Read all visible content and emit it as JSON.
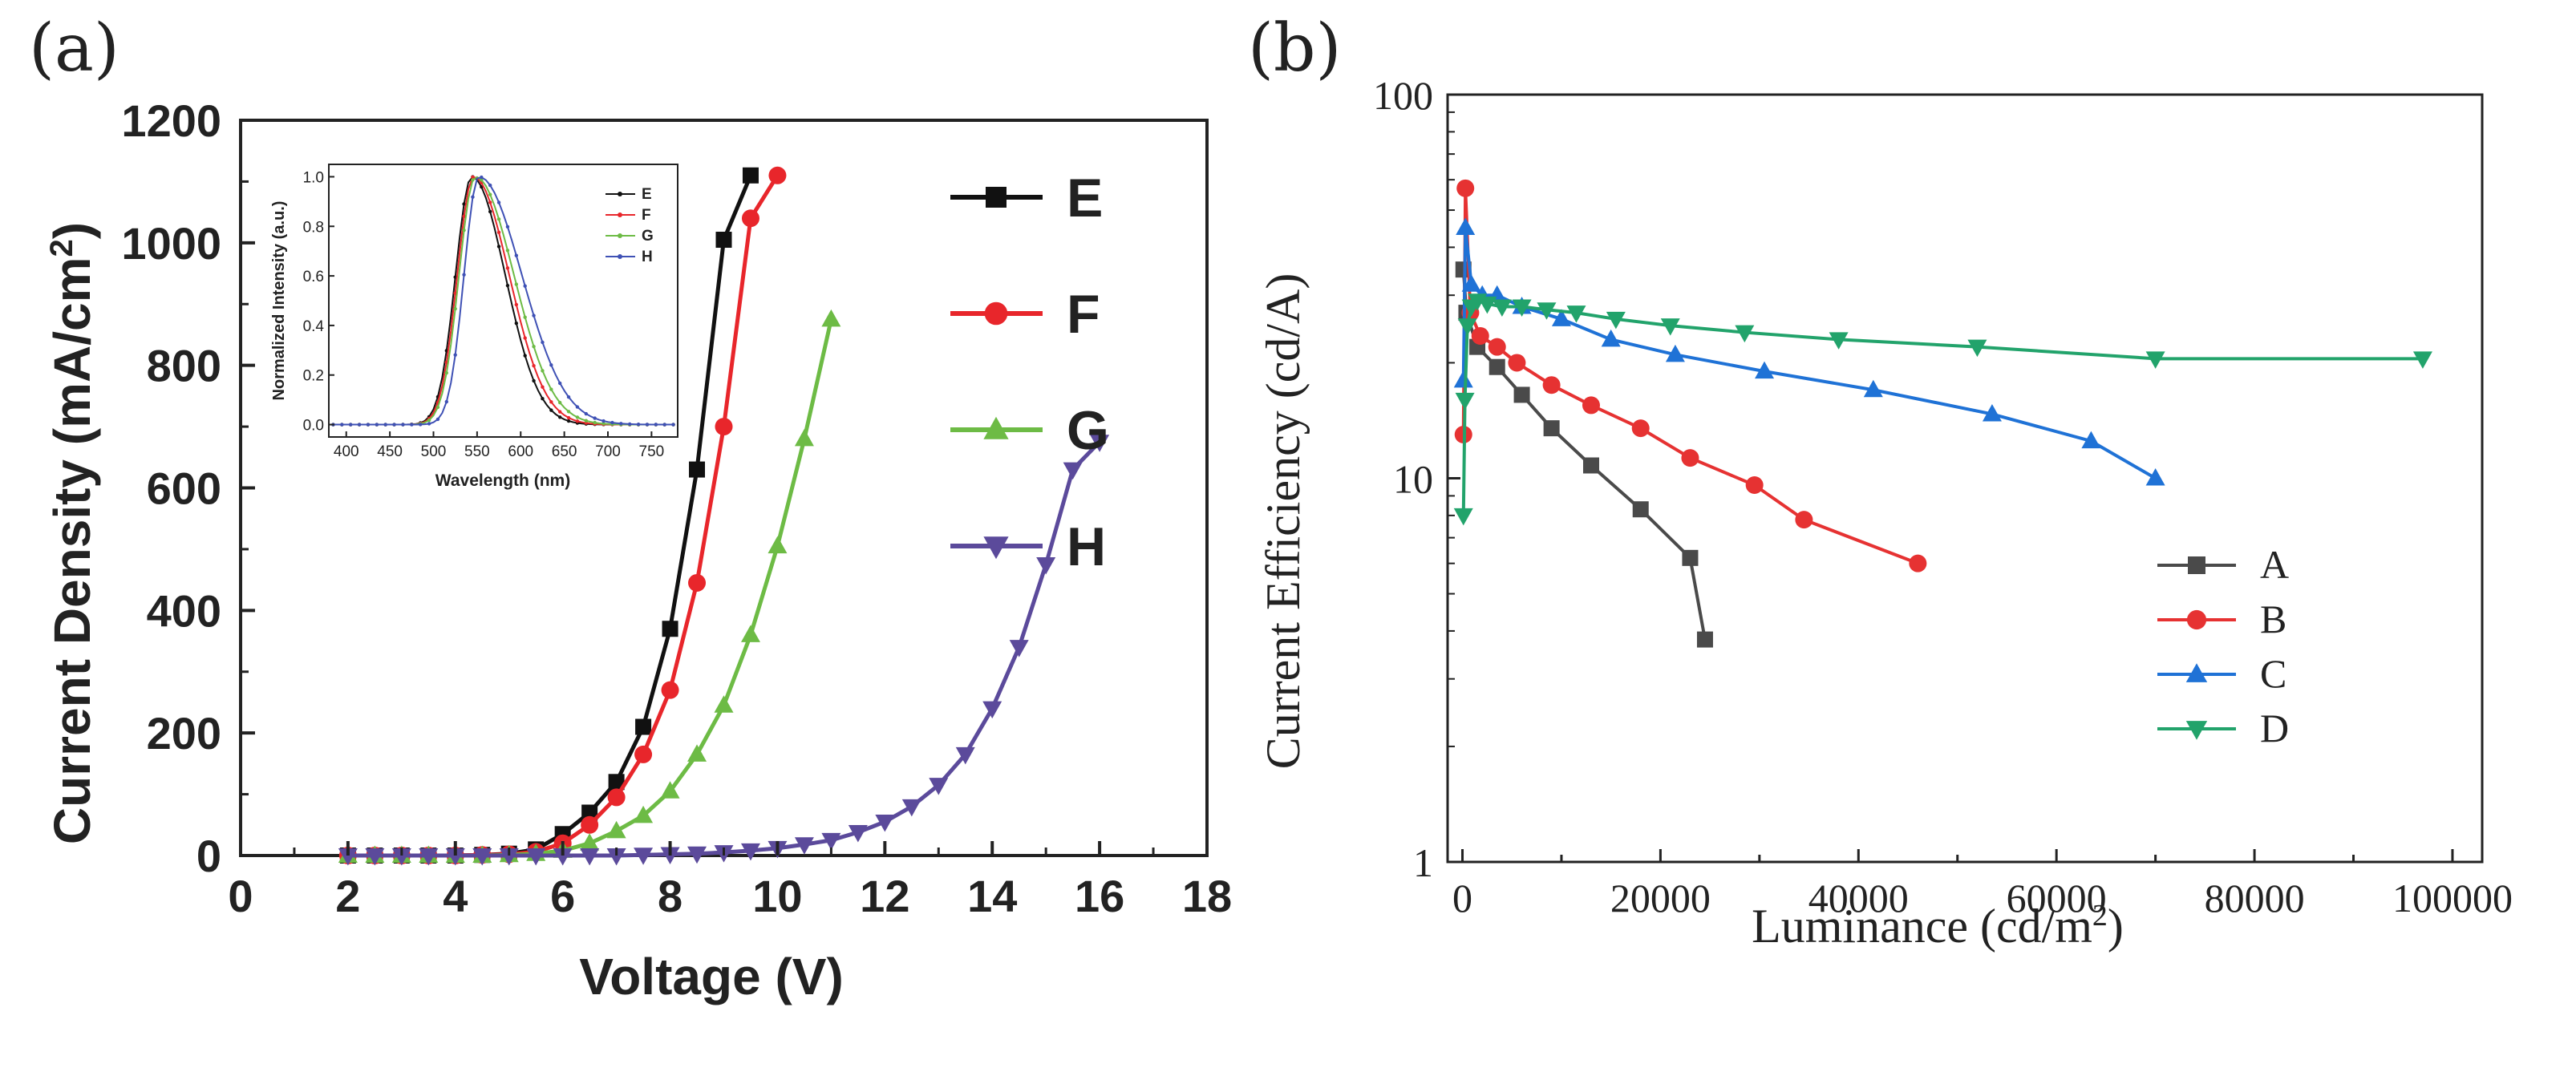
{
  "chart_data": [
    {
      "panel": "(a)",
      "type": "line",
      "title": "",
      "xlabel": "Voltage (V)",
      "ylabel": "Current Density (mA/cm2)",
      "ylabel_parts": [
        "Current Density (mA/cm",
        "2",
        ")"
      ],
      "xlim": [
        0,
        18
      ],
      "ylim": [
        0,
        1200
      ],
      "x_ticks": [
        "0",
        "2",
        "4",
        "6",
        "8",
        "10",
        "12",
        "14",
        "16",
        "18"
      ],
      "y_ticks": [
        "0",
        "200",
        "400",
        "600",
        "800",
        "1000",
        "1200"
      ],
      "legend": {
        "placement": "top-right",
        "entries": [
          "E",
          "F",
          "G",
          "H"
        ]
      },
      "series": [
        {
          "name": "E",
          "color": "#111111",
          "marker": "square",
          "x": [
            2,
            2.5,
            3,
            3.5,
            4,
            4.5,
            5,
            5.5,
            6,
            6.5,
            7,
            7.5,
            8,
            8.5,
            9,
            9.5
          ],
          "y": [
            0,
            0,
            0,
            0,
            0,
            1,
            3,
            10,
            35,
            70,
            120,
            210,
            370,
            630,
            1005,
            1110
          ]
        },
        {
          "name": "F",
          "color": "#e8262b",
          "marker": "circle",
          "x": [
            2,
            2.5,
            3,
            3.5,
            4,
            4.5,
            5,
            5.5,
            6,
            6.5,
            7,
            7.5,
            8,
            8.5,
            9,
            9.5,
            10
          ],
          "y": [
            0,
            0,
            0,
            0,
            0,
            1,
            2,
            6,
            20,
            50,
            95,
            165,
            270,
            445,
            700,
            1040,
            1110
          ]
        },
        {
          "name": "G",
          "color": "#6dbb45",
          "marker": "triangle-up",
          "x": [
            2,
            2.5,
            3,
            3.5,
            4,
            4.5,
            5,
            5.5,
            6,
            6.5,
            7,
            7.5,
            8,
            8.5,
            9,
            9.5,
            10,
            10.5,
            11
          ],
          "y": [
            0,
            0,
            0,
            0,
            0,
            0,
            1,
            3,
            8,
            20,
            40,
            65,
            105,
            165,
            245,
            360,
            505,
            680,
            875
          ]
        },
        {
          "name": "H",
          "color": "#5b4a9b",
          "marker": "triangle-down",
          "x": [
            2,
            2.5,
            3,
            3.5,
            4,
            4.5,
            5,
            5.5,
            6,
            6.5,
            7,
            7.5,
            8,
            8.5,
            9,
            9.5,
            10,
            10.5,
            11,
            11.5,
            12,
            12.5,
            13,
            13.5,
            14,
            14.5,
            15,
            15.5,
            16
          ],
          "y": [
            0,
            0,
            0,
            0,
            0,
            0,
            0,
            0,
            0,
            0,
            0,
            1,
            2,
            3,
            5,
            8,
            12,
            18,
            25,
            38,
            55,
            80,
            115,
            165,
            240,
            340,
            475,
            630,
            675
          ]
        }
      ],
      "inset": {
        "type": "line",
        "xlabel": "Wavelength (nm)",
        "ylabel": "Normalized Intensity (a.u.)",
        "xlim": [
          380,
          780
        ],
        "ylim": [
          -0.05,
          1.05
        ],
        "x_ticks": [
          "400",
          "450",
          "500",
          "550",
          "600",
          "650",
          "700",
          "750"
        ],
        "y_ticks": [
          "0.0",
          "0.2",
          "0.4",
          "0.6",
          "0.8",
          "1.0"
        ],
        "legend": [
          "E",
          "F",
          "G",
          "H"
        ],
        "series": [
          {
            "name": "E",
            "color": "#111111",
            "peak_nm": 544,
            "fwhm_left": 22,
            "fwhm_right": 45
          },
          {
            "name": "F",
            "color": "#e8262b",
            "peak_nm": 546,
            "fwhm_left": 22,
            "fwhm_right": 48
          },
          {
            "name": "G",
            "color": "#6dbb45",
            "peak_nm": 548,
            "fwhm_left": 22,
            "fwhm_right": 52
          },
          {
            "name": "H",
            "color": "#3f51b5",
            "peak_nm": 552,
            "fwhm_left": 20,
            "fwhm_right": 58
          }
        ]
      }
    },
    {
      "panel": "(b)",
      "type": "line",
      "title": "",
      "xlabel": "Luminance (cd/m2)",
      "xlabel_parts": [
        "Luminance (cd/m",
        "2",
        ")"
      ],
      "ylabel": "Current Efficiency (cd/A)",
      "yscale": "log",
      "xlim": [
        -1500,
        103000
      ],
      "ylim": [
        1,
        100
      ],
      "x_ticks": [
        "0",
        "20000",
        "40000",
        "60000",
        "80000",
        "100000"
      ],
      "y_ticks": [
        "1",
        "10",
        "100"
      ],
      "legend": {
        "placement": "bottom-right",
        "entries": [
          "A",
          "B",
          "C",
          "D"
        ]
      },
      "series": [
        {
          "name": "A",
          "color": "#4a4a4a",
          "marker": "square",
          "x": [
            100,
            400,
            1500,
            3500,
            6000,
            9000,
            13000,
            18000,
            23000,
            24500
          ],
          "y": [
            35,
            27,
            22,
            19.5,
            16.5,
            13.5,
            10.8,
            8.3,
            6.2,
            3.8
          ]
        },
        {
          "name": "B",
          "color": "#e63232",
          "marker": "circle",
          "x": [
            100,
            300,
            800,
            1800,
            3500,
            5500,
            9000,
            13000,
            18000,
            23000,
            29500,
            34500,
            46000
          ],
          "y": [
            13,
            57,
            27,
            23.5,
            22,
            20,
            17.5,
            15.5,
            13.5,
            11.3,
            9.6,
            7.8,
            6.0
          ]
        },
        {
          "name": "C",
          "color": "#1f72d6",
          "marker": "triangle-up",
          "x": [
            100,
            300,
            900,
            2000,
            3500,
            6000,
            10000,
            15000,
            21500,
            30500,
            41500,
            53500,
            63500,
            70000
          ],
          "y": [
            18,
            45,
            32,
            30,
            30,
            28,
            26,
            23,
            21,
            19,
            17,
            14.7,
            12.5,
            10
          ]
        },
        {
          "name": "D",
          "color": "#22a36b",
          "marker": "triangle-down",
          "x": [
            100,
            250,
            500,
            900,
            1500,
            2500,
            4000,
            6000,
            8500,
            11500,
            15500,
            21000,
            28500,
            38000,
            52000,
            70000,
            97000
          ],
          "y": [
            8,
            16,
            25,
            28,
            29,
            28.5,
            28,
            28,
            27.5,
            27,
            26,
            25,
            24,
            23,
            22,
            20.5,
            20.5
          ]
        }
      ]
    }
  ]
}
